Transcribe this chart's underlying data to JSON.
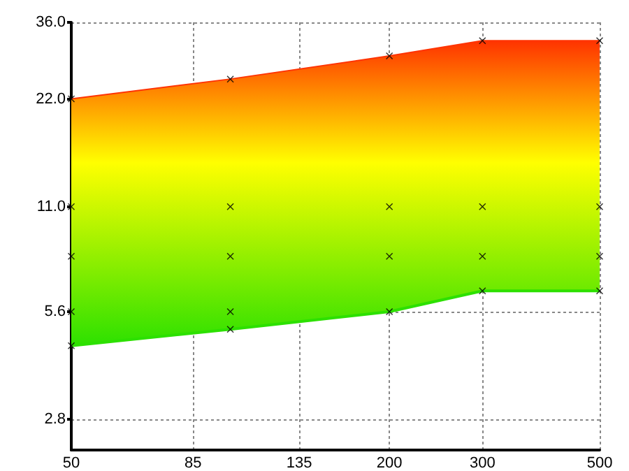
{
  "chart_data": {
    "type": "area",
    "log": "xy",
    "grid": true,
    "marker": "cross",
    "xlim": [
      50,
      500
    ],
    "xticks": [
      50,
      85,
      135,
      200,
      300,
      500
    ],
    "ylim": [
      2.3,
      36
    ],
    "yticks": [
      {
        "value": 2.8,
        "label": "2.8"
      },
      {
        "value": 5.6,
        "label": "5.6"
      },
      {
        "value": 11,
        "label": "11.0"
      },
      {
        "value": 22,
        "label": "22.0"
      },
      {
        "value": 36,
        "label": "36.0"
      }
    ],
    "series": [
      {
        "marker": "none",
        "x": [
          50,
          100,
          200,
          300,
          500
        ],
        "values": [
          22,
          25,
          29,
          32,
          32
        ],
        "color": "#ffff00"
      },
      {
        "type": "line",
        "marker": "none",
        "x": [
          50,
          100,
          200,
          300,
          500
        ],
        "values": [
          4.5,
          5.0,
          5.6,
          6.4,
          6.4
        ],
        "color": "#2de000"
      },
      {
        "type": "scatter",
        "color": "#000000",
        "x": [
          50,
          50,
          50,
          50,
          50,
          100,
          100,
          100,
          100,
          100,
          200,
          200,
          200,
          200,
          300,
          300,
          300,
          300,
          500,
          500,
          500,
          500
        ],
        "values": [
          22,
          11,
          8,
          5.6,
          4.5,
          25,
          11,
          8,
          5.6,
          5.0,
          29,
          11,
          8,
          5.6,
          32,
          11,
          8,
          6.4,
          32,
          11,
          8,
          6.4
        ]
      }
    ]
  }
}
